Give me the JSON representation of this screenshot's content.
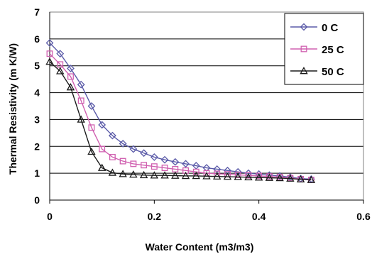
{
  "chart_data": {
    "type": "line",
    "title": "",
    "xlabel": "Water Content (m3/m3)",
    "ylabel": "Thermal Resistivity (m K/W)",
    "xlim": [
      0,
      0.6
    ],
    "ylim": [
      0,
      7
    ],
    "xticks": [
      "0",
      "0.2",
      "0.4",
      "0.6"
    ],
    "yticks": [
      "0",
      "1",
      "2",
      "3",
      "4",
      "5",
      "6",
      "7"
    ],
    "grid": "horizontal",
    "legend_position": "top-right",
    "x": [
      0,
      0.02,
      0.04,
      0.06,
      0.08,
      0.1,
      0.12,
      0.14,
      0.16,
      0.18,
      0.2,
      0.22,
      0.24,
      0.26,
      0.28,
      0.3,
      0.32,
      0.34,
      0.36,
      0.38,
      0.4,
      0.42,
      0.44,
      0.46,
      0.48,
      0.5
    ],
    "series": [
      {
        "name": "0 C",
        "marker": "diamond",
        "color": "#5a5aa8",
        "values": [
          5.85,
          5.45,
          4.9,
          4.3,
          3.5,
          2.8,
          2.4,
          2.1,
          1.9,
          1.75,
          1.6,
          1.5,
          1.42,
          1.35,
          1.28,
          1.2,
          1.15,
          1.1,
          1.05,
          1.0,
          0.97,
          0.93,
          0.9,
          0.85,
          0.8,
          0.78
        ]
      },
      {
        "name": "25 C",
        "marker": "square",
        "color": "#d060b0",
        "values": [
          5.45,
          5.05,
          4.6,
          3.7,
          2.7,
          1.9,
          1.6,
          1.45,
          1.35,
          1.3,
          1.25,
          1.2,
          1.15,
          1.1,
          1.05,
          1.0,
          0.98,
          0.96,
          0.94,
          0.92,
          0.9,
          0.88,
          0.86,
          0.82,
          0.78,
          0.75
        ]
      },
      {
        "name": "50 C",
        "marker": "triangle",
        "color": "#1a1a1a",
        "values": [
          5.15,
          4.8,
          4.2,
          3.0,
          1.8,
          1.2,
          1.02,
          0.97,
          0.95,
          0.93,
          0.92,
          0.92,
          0.91,
          0.9,
          0.9,
          0.89,
          0.88,
          0.87,
          0.86,
          0.85,
          0.84,
          0.83,
          0.82,
          0.8,
          0.77,
          0.75
        ]
      }
    ]
  }
}
